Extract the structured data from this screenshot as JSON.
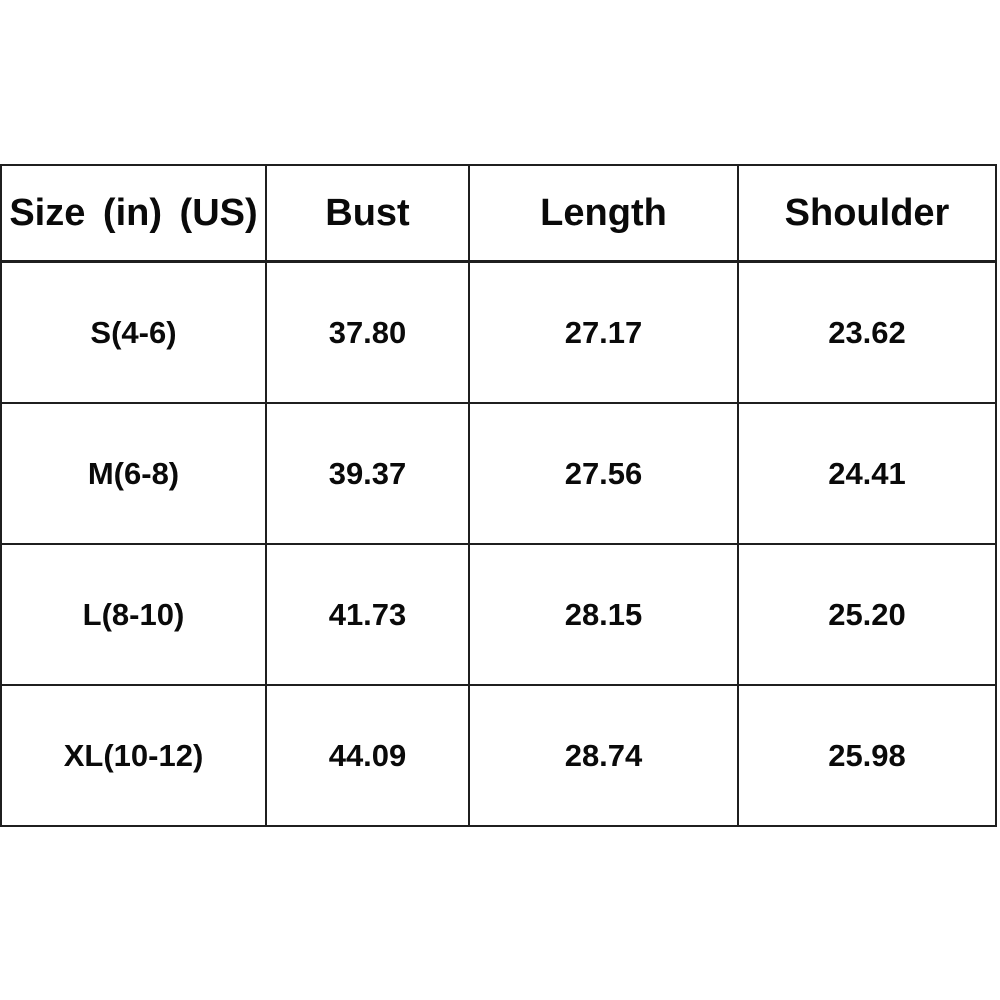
{
  "colors": {
    "background": "#ffffff",
    "border": "#1f1f1f",
    "text": "#0a0a0a"
  },
  "chart_data": {
    "type": "table",
    "columns": [
      "Size  (in)  (US)",
      "Bust",
      "Length",
      "Shoulder"
    ],
    "rows": [
      [
        "S(4-6)",
        "37.80",
        "27.17",
        "23.62"
      ],
      [
        "M(6-8)",
        "39.37",
        "27.56",
        "24.41"
      ],
      [
        "L(8-10)",
        "41.73",
        "28.15",
        "25.20"
      ],
      [
        "XL(10-12)",
        "44.09",
        "28.74",
        "25.98"
      ]
    ],
    "layout": {
      "grid": true,
      "header_row": true,
      "text_align": "center",
      "units": "inches"
    }
  }
}
